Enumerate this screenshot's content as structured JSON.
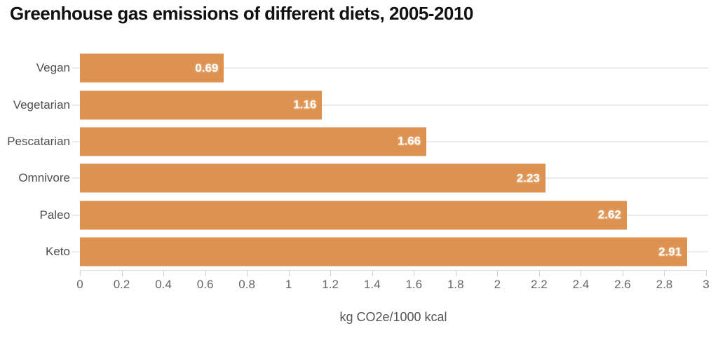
{
  "title": "Greenhouse gas emissions of different diets, 2005-2010",
  "chart_data": {
    "type": "bar",
    "orientation": "horizontal",
    "title": "Greenhouse gas emissions of different diets, 2005-2010",
    "categories": [
      "Vegan",
      "Vegetarian",
      "Pescatarian",
      "Omnivore",
      "Paleo",
      "Keto"
    ],
    "values": [
      0.69,
      1.16,
      1.66,
      2.23,
      2.62,
      2.91
    ],
    "value_labels": [
      "0.69",
      "1.16",
      "1.66",
      "2.23",
      "2.62",
      "2.91"
    ],
    "xlabel": "kg CO2e/1000 kcal",
    "ylabel": "",
    "xlim": [
      0,
      3
    ],
    "x_ticks": [
      0,
      0.2,
      0.4,
      0.6,
      0.8,
      1,
      1.2,
      1.4,
      1.6,
      1.8,
      2,
      2.2,
      2.4,
      2.6,
      2.8,
      3
    ],
    "x_tick_labels": [
      "0",
      "0.2",
      "0.4",
      "0.6",
      "0.8",
      "1",
      "1.2",
      "1.4",
      "1.6",
      "1.8",
      "2",
      "2.2",
      "2.4",
      "2.6",
      "2.8",
      "3"
    ],
    "grid": "horizontal row guide lines behind bars",
    "legend": "none"
  },
  "colors": {
    "background": "#ffffff",
    "bar": "#de9250",
    "title_text": "#111111",
    "category_label": "#4f4f4f",
    "value_label": "#ffffff",
    "tick_label": "#666666",
    "axis_label": "#555555",
    "grid_line": "#ebebeb"
  }
}
